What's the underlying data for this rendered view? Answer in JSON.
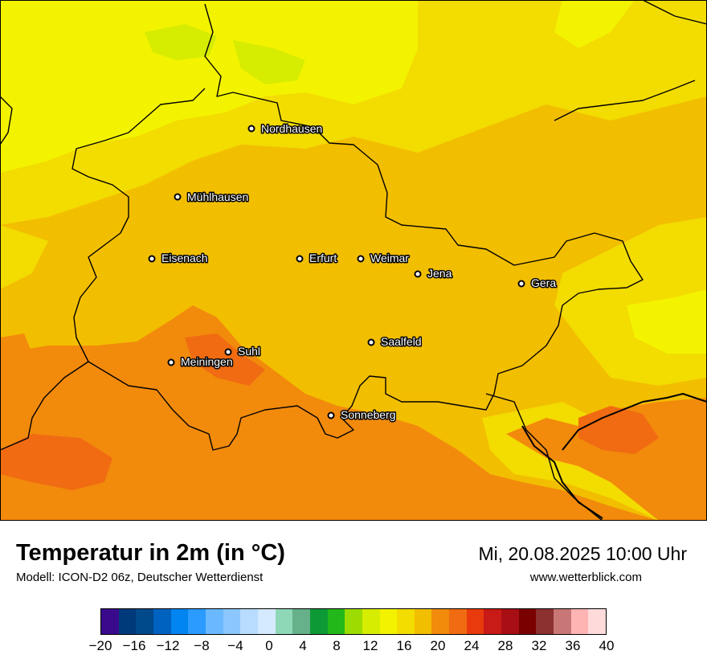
{
  "map": {
    "region": "Thüringen",
    "colors": {
      "t12_14": "#d6ec00",
      "t14_16": "#f3f300",
      "t16_18": "#f3dc00",
      "t18_20": "#f2be00",
      "t20_22": "#f28a0c",
      "t22_24": "#f06b11",
      "borders": "#000000"
    },
    "cities": [
      {
        "name": "Nordhausen"
      },
      {
        "name": "Mühlhausen"
      },
      {
        "name": "Eisenach"
      },
      {
        "name": "Erfurt"
      },
      {
        "name": "Weimar"
      },
      {
        "name": "Jena"
      },
      {
        "name": "Gera"
      },
      {
        "name": "Suhl"
      },
      {
        "name": "Meiningen"
      },
      {
        "name": "Saalfeld"
      },
      {
        "name": "Sonneberg"
      }
    ]
  },
  "header": {
    "title": "Temperatur in 2m (in °C)",
    "subtitle": "Modell: ICON-D2 06z, Deutscher Wetterdienst",
    "datetime": "Mi, 20.08.2025 10:00 Uhr",
    "website": "www.wetterblick.com"
  },
  "legend": {
    "ticks": [
      "−20",
      "−16",
      "−12",
      "−8",
      "−4",
      "0",
      "4",
      "8",
      "12",
      "16",
      "20",
      "24",
      "28",
      "32",
      "36",
      "40"
    ],
    "colors": [
      "#3a0a8c",
      "#003a7a",
      "#004a8c",
      "#0062c0",
      "#0085f0",
      "#2b9bff",
      "#6ab8ff",
      "#8cc6ff",
      "#b8dcff",
      "#d5e9ff",
      "#8ed8b8",
      "#66b08a",
      "#0d9a36",
      "#22b81a",
      "#9cdc00",
      "#d6ec00",
      "#f3f300",
      "#f3dc00",
      "#f2be00",
      "#f28a0c",
      "#f06b11",
      "#e83a0c",
      "#c81a16",
      "#a80f14",
      "#7a0000",
      "#8c3030",
      "#c87676",
      "#ffb4b4",
      "#ffdada"
    ]
  }
}
